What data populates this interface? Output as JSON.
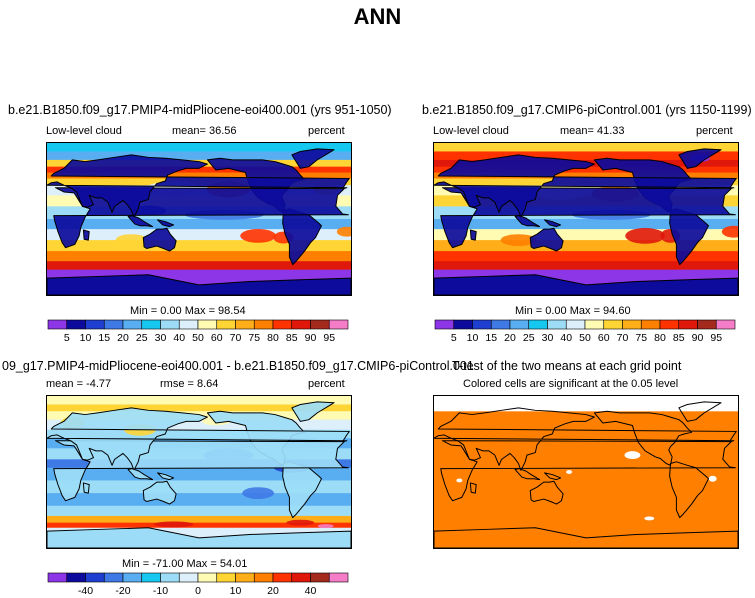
{
  "page": {
    "title": "ANN"
  },
  "panels": [
    {
      "id": "case",
      "title": "b.e21.B1850.f09_g17.PMIP4-midPliocene-eoi400.001 (yrs 951-1050)",
      "variable": "Low-level cloud",
      "mean_text": "mean=  36.56",
      "units": "percent",
      "minmax_text": "Min =   0.00 Max =  98.54"
    },
    {
      "id": "control",
      "title": "b.e21.B1850.f09_g17.CMIP6-piControl.001 (yrs 1150-1199)",
      "variable": "Low-level cloud",
      "mean_text": "mean=  41.33",
      "units": "percent",
      "minmax_text": "Min =   0.00 Max =  94.60"
    },
    {
      "id": "difference",
      "title": "09_g17.PMIP4-midPliocene-eoi400.001 - b.e21.B1850.f09_g17.CMIP6-piControl.001",
      "mean_text": "mean =  -4.77",
      "rmse_text": "rmse =   8.64",
      "units": "percent",
      "minmax_text": "Min = -71.00 Max =  54.01"
    },
    {
      "id": "ttest",
      "title": "T-test of the two means at each grid point",
      "subtitle": "Colored cells are significant at the 0.05 level",
      "fill_color": "#ff7f00"
    }
  ],
  "chart_data": [
    {
      "type": "heatmap",
      "panel": "case",
      "mean": 36.56,
      "min": 0.0,
      "max": 98.54,
      "units": "percent",
      "colorbar_labels": [
        "5",
        "10",
        "15",
        "20",
        "25",
        "30",
        "40",
        "50",
        "60",
        "70",
        "75",
        "80",
        "85",
        "90",
        "95"
      ],
      "colorbar_colors": [
        "#8d36e8",
        "#0c0b9c",
        "#1f3fd1",
        "#3f79e6",
        "#59aef2",
        "#16c8f0",
        "#9cdcf7",
        "#ddeffb",
        "#fffbb3",
        "#ffd435",
        "#ffae1a",
        "#ff7f00",
        "#ff3300",
        "#e0170b",
        "#a32a1c",
        "#f57dc8"
      ]
    },
    {
      "type": "heatmap",
      "panel": "control",
      "mean": 41.33,
      "min": 0.0,
      "max": 94.6,
      "units": "percent",
      "colorbar_labels": [
        "5",
        "10",
        "15",
        "20",
        "25",
        "30",
        "40",
        "50",
        "60",
        "70",
        "75",
        "80",
        "85",
        "90",
        "95"
      ],
      "colorbar_colors": [
        "#8d36e8",
        "#0c0b9c",
        "#1f3fd1",
        "#3f79e6",
        "#59aef2",
        "#16c8f0",
        "#9cdcf7",
        "#ddeffb",
        "#fffbb3",
        "#ffd435",
        "#ffae1a",
        "#ff7f00",
        "#ff3300",
        "#e0170b",
        "#a32a1c",
        "#f57dc8"
      ]
    },
    {
      "type": "heatmap",
      "panel": "difference",
      "mean": -4.77,
      "rmse": 8.64,
      "min": -71.0,
      "max": 54.01,
      "units": "percent",
      "colorbar_labels": [
        "-40",
        "-20",
        "-10",
        "0",
        "10",
        "20",
        "40"
      ],
      "colorbar_ticks": [
        -50,
        -40,
        -30,
        -20,
        -15,
        -10,
        -5,
        0,
        5,
        10,
        15,
        20,
        30,
        40,
        50
      ],
      "colorbar_colors": [
        "#8d36e8",
        "#0c0b9c",
        "#1f3fd1",
        "#3f79e6",
        "#59aef2",
        "#16c8f0",
        "#9cdcf7",
        "#ddeffb",
        "#fffbb3",
        "#ffd435",
        "#ffae1a",
        "#ff7f00",
        "#ff3300",
        "#e0170b",
        "#a32a1c",
        "#f57dc8"
      ]
    },
    {
      "type": "heatmap",
      "panel": "ttest",
      "significance_level": 0.05,
      "fill_color": "#ff7f00"
    }
  ]
}
